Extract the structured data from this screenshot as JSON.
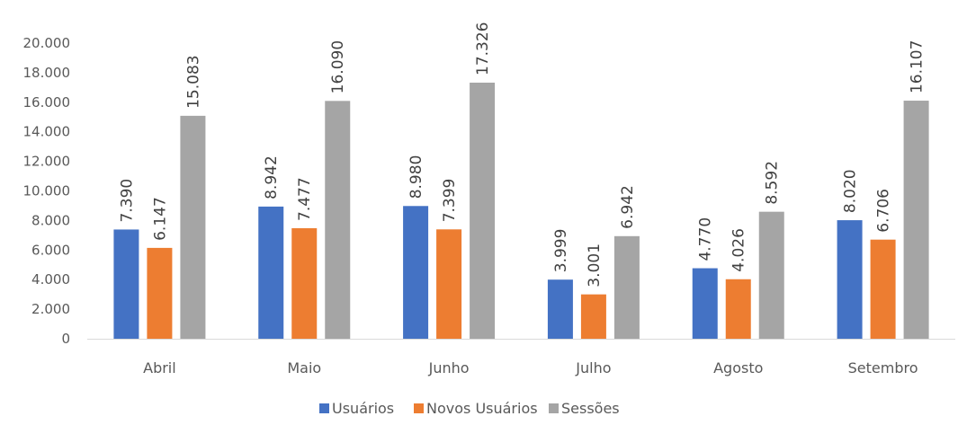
{
  "chart_data": {
    "type": "bar",
    "title": "",
    "xlabel": "",
    "ylabel": "",
    "categories": [
      "Abril",
      "Maio",
      "Junho",
      "Julho",
      "Agosto",
      "Setembro"
    ],
    "series": [
      {
        "name": "Usuários",
        "color": "#4472C4",
        "values": [
          7390,
          8942,
          8980,
          3999,
          4770,
          8020
        ],
        "labels": [
          "7.390",
          "8.942",
          "8.980",
          "3.999",
          "4.770",
          "8.020"
        ]
      },
      {
        "name": "Novos Usuários",
        "color": "#ED7D31",
        "values": [
          6147,
          7477,
          7399,
          3001,
          4026,
          6706
        ],
        "labels": [
          "6.147",
          "7.477",
          "7.399",
          "3.001",
          "4.026",
          "6.706"
        ]
      },
      {
        "name": "Sessões",
        "color": "#A5A5A5",
        "values": [
          15083,
          16090,
          17326,
          6942,
          8592,
          16107
        ],
        "labels": [
          "15.083",
          "16.090",
          "17.326",
          "6.942",
          "8.592",
          "16.107"
        ]
      }
    ],
    "ylim": [
      0,
      20000
    ],
    "yticks": [
      0,
      2000,
      4000,
      6000,
      8000,
      10000,
      12000,
      14000,
      16000,
      18000,
      20000
    ],
    "ytick_labels": [
      "0",
      "2.000",
      "4.000",
      "6.000",
      "8.000",
      "10.000",
      "12.000",
      "14.000",
      "16.000",
      "18.000",
      "20.000"
    ],
    "grid": false,
    "legend_position": "bottom",
    "data_labels": true
  }
}
